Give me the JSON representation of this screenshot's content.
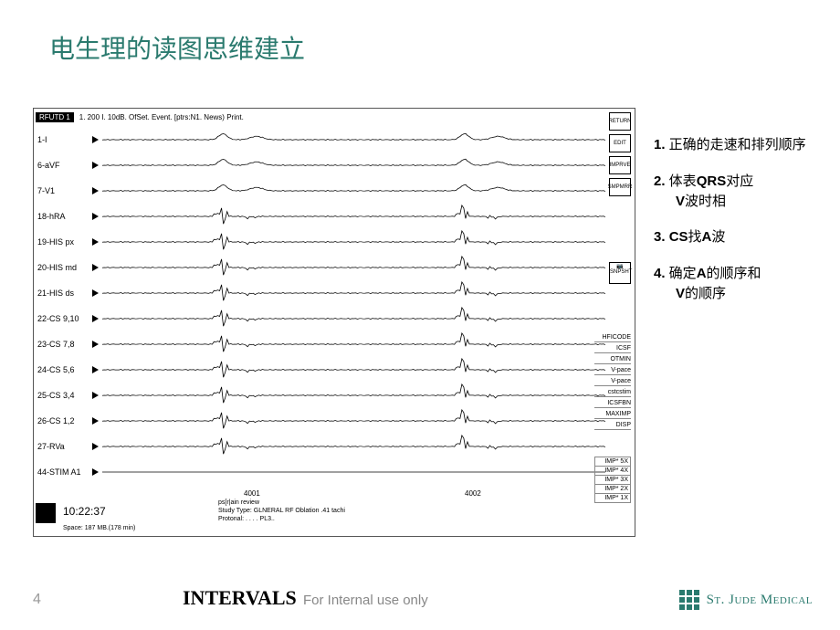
{
  "title": "电生理的读图思维建立",
  "header": {
    "box": "RFUTD 1",
    "text": "1. 200 I. 10dB. OfSet. Event. [ptrs:N1. News) Print."
  },
  "traces": [
    {
      "label": "1-I",
      "type": "smooth"
    },
    {
      "label": "6-aVF",
      "type": "smooth"
    },
    {
      "label": "7-V1",
      "type": "smooth"
    },
    {
      "label": "18-hRA",
      "type": "sharp"
    },
    {
      "label": "19-HIS px",
      "type": "sharp"
    },
    {
      "label": "20-HIS md",
      "type": "sharp"
    },
    {
      "label": "21-HIS ds",
      "type": "sharp"
    },
    {
      "label": "22-CS 9,10",
      "type": "sharp"
    },
    {
      "label": "23-CS 7,8",
      "type": "sharp"
    },
    {
      "label": "24-CS 5,6",
      "type": "sharp"
    },
    {
      "label": "25-CS 3,4",
      "type": "sharp"
    },
    {
      "label": "26-CS 1,2",
      "type": "sharp"
    },
    {
      "label": "27-RVa",
      "type": "sharp"
    },
    {
      "label": "44-STIM A1",
      "type": "flat"
    }
  ],
  "icons_top": [
    "RETURN",
    "EDIT",
    "IMPRVE",
    "SMPMRR"
  ],
  "right_small": [
    "HFICODE",
    "ICSF",
    "OTMIN",
    "V-pace",
    "V-pace",
    "cstcstim",
    "ICSFBN",
    "MAXIMP",
    "DISP"
  ],
  "imp": [
    "IMP* 5X",
    "IMP* 4X",
    "IMP* 3X",
    "IMP* 2X",
    "IMP* 1X"
  ],
  "annot1": "4001",
  "annot2": "4002",
  "footer": {
    "time": "10:22:37",
    "space": "Space: 187 MB.(178 min)",
    "study1": "ps[r|ain review",
    "study2": "Study Type: GLNERAL RF Oblation .41 tachi",
    "study3": "Protonal: . . . . PL3.."
  },
  "side": [
    {
      "num": "1.",
      "text": "正确的走速和排列顺序",
      "indent": false
    },
    {
      "num": "2.",
      "text": "体表<b>QRS</b>对应",
      "line2": "<b>V</b>波时相",
      "indent": false
    },
    {
      "num": "3.",
      "text": "<b>CS</b>找<b>A</b>波",
      "indent": false
    },
    {
      "num": "4.",
      "text": "确定<b>A</b>的顺序和",
      "line2": "<b>V</b>的顺序",
      "indent": false
    }
  ],
  "pagenum": "4",
  "intervals": "INTERVALS",
  "internal": "For Internal use only",
  "logo_text": "St. Jude Medical",
  "colors": {
    "teal": "#2a7a6e",
    "grey": "#999999"
  }
}
